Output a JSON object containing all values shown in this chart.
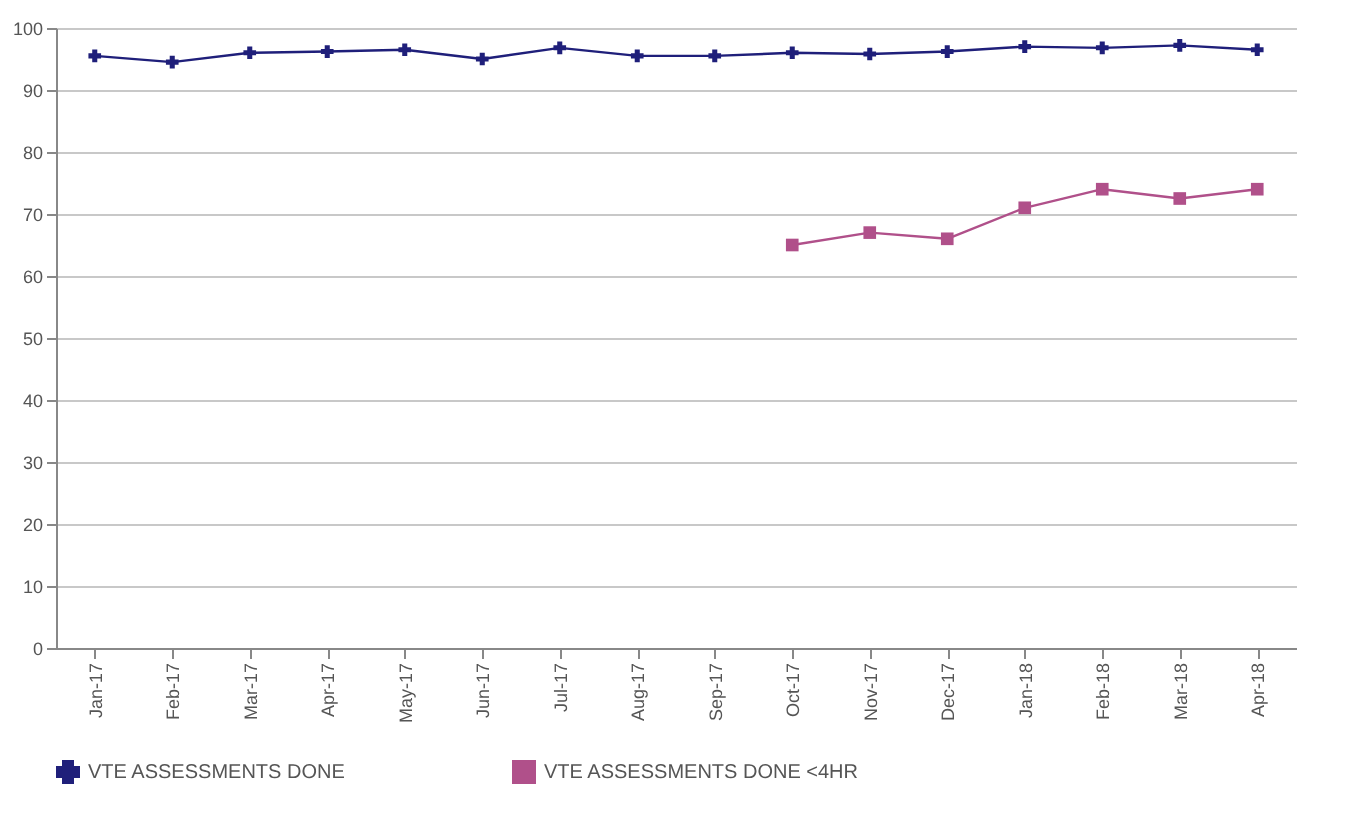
{
  "chart_data": {
    "type": "line",
    "categories": [
      "Jan-17",
      "Feb-17",
      "Mar-17",
      "Apr-17",
      "May-17",
      "Jun-17",
      "Jul-17",
      "Aug-17",
      "Sep-17",
      "Oct-17",
      "Nov-17",
      "Dec-17",
      "Jan-18",
      "Feb-18",
      "Mar-18",
      "Apr-18"
    ],
    "series": [
      {
        "name": "VTE ASSESSMENTS DONE",
        "color": "#1f1f7a",
        "marker": "cross",
        "values": [
          95.5,
          94.5,
          96,
          96.2,
          96.5,
          95,
          96.8,
          95.5,
          95.5,
          96,
          95.8,
          96.2,
          97,
          96.8,
          97.2,
          96.5
        ]
      },
      {
        "name": "VTE ASSESSMENTS DONE <4HR",
        "color": "#b0508a",
        "marker": "square",
        "values": [
          null,
          null,
          null,
          null,
          null,
          null,
          null,
          null,
          null,
          65,
          67,
          66,
          71,
          74,
          72.5,
          74
        ]
      }
    ],
    "ylim": [
      0,
      100
    ],
    "yticks": [
      0,
      10,
      20,
      30,
      40,
      50,
      60,
      70,
      80,
      90,
      100
    ],
    "grid": "y",
    "legend": "bottom"
  }
}
